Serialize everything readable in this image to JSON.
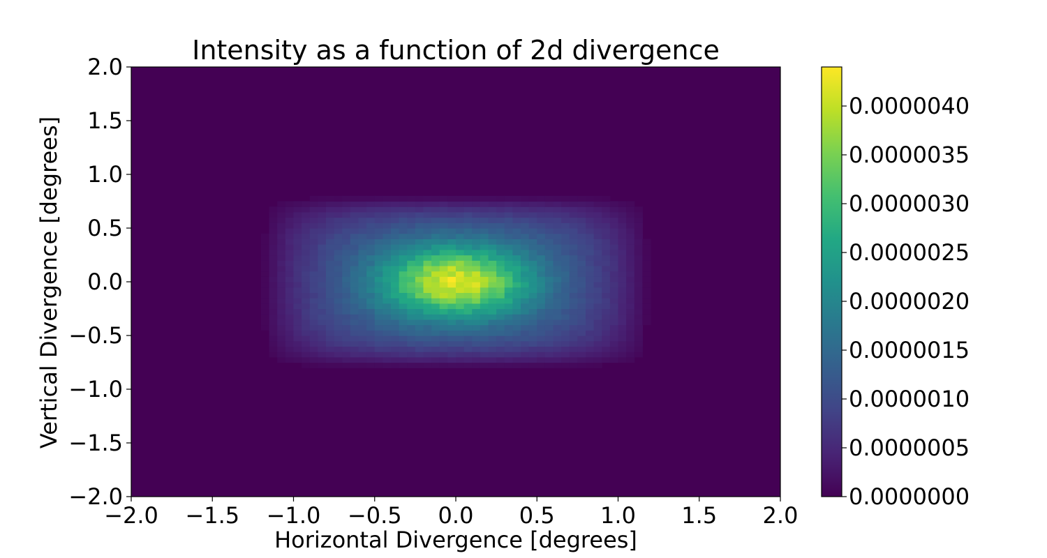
{
  "chart_data": {
    "type": "heatmap",
    "title": "Intensity as a function of 2d divergence",
    "xlabel": "Horizontal Divergence [degrees]",
    "ylabel": "Vertical Divergence [degrees]",
    "xlim": [
      -2.0,
      2.0
    ],
    "ylim": [
      -2.0,
      2.0
    ],
    "x_ticks": [
      "−2.0",
      "−1.5",
      "−1.0",
      "−0.5",
      "0.0",
      "0.5",
      "1.0",
      "1.5",
      "2.0"
    ],
    "y_ticks": [
      "−2.0",
      "−1.5",
      "−1.0",
      "−0.5",
      "0.0",
      "0.5",
      "1.0",
      "1.5",
      "2.0"
    ],
    "x_tick_values": [
      -2.0,
      -1.5,
      -1.0,
      -0.5,
      0.0,
      0.5,
      1.0,
      1.5,
      2.0
    ],
    "y_tick_values": [
      -2.0,
      -1.5,
      -1.0,
      -0.5,
      0.0,
      0.5,
      1.0,
      1.5,
      2.0
    ],
    "colormap": "viridis",
    "colorbar": {
      "min": 0.0,
      "max": 4.4e-06,
      "ticks": [
        "0.0000000",
        "0.0000005",
        "0.0000010",
        "0.0000015",
        "0.0000020",
        "0.0000025",
        "0.0000030",
        "0.0000035",
        "0.0000040"
      ],
      "tick_values": [
        0.0,
        5e-07,
        1e-06,
        1.5e-06,
        2e-06,
        2.5e-06,
        3e-06,
        3.5e-06,
        4e-06
      ]
    },
    "grid": false,
    "peak": {
      "x": 0.0,
      "y": 0.0,
      "value": 4.4e-06
    },
    "horizontal_extent": [
      -1.2,
      1.2
    ],
    "vertical_extent": [
      -0.8,
      0.8
    ],
    "bins": [
      80,
      80
    ]
  }
}
